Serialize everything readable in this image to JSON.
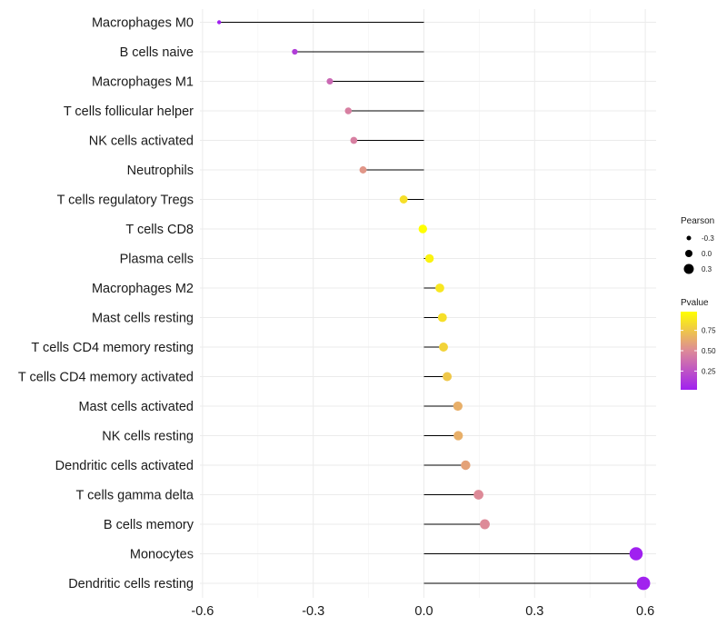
{
  "chart_data": {
    "type": "lollipop",
    "title": "",
    "xlabel": "",
    "ylabel": "",
    "xlim": [
      -0.62,
      0.62
    ],
    "x_ticks": [
      -0.6,
      -0.3,
      0.0,
      0.3,
      0.6
    ],
    "x_tick_labels": [
      "-0.6",
      "-0.3",
      "0.0",
      "0.3",
      "0.6"
    ],
    "grid": true,
    "baseline": 0.0,
    "categories": [
      "Macrophages M0",
      "B cells naive",
      "Macrophages M1",
      "T cells follicular helper",
      "NK cells activated",
      "Neutrophils",
      "T cells regulatory  Tregs ",
      "T cells CD8",
      "Plasma cells",
      "Macrophages M2",
      "Mast cells resting",
      "T cells CD4 memory resting",
      "T cells CD4 memory activated",
      "Mast cells activated",
      "NK cells resting",
      "Dendritic cells activated",
      "T cells gamma delta",
      "B cells memory",
      "Monocytes",
      "Dendritic cells resting"
    ],
    "pearson": [
      -0.555,
      -0.35,
      -0.255,
      -0.205,
      -0.19,
      -0.165,
      -0.055,
      -0.003,
      0.015,
      0.043,
      0.05,
      0.053,
      0.063,
      0.092,
      0.093,
      0.113,
      0.148,
      0.165,
      0.575,
      0.595
    ],
    "pvalue": [
      0.02,
      0.15,
      0.35,
      0.45,
      0.45,
      0.55,
      0.85,
      0.98,
      0.93,
      0.88,
      0.85,
      0.8,
      0.75,
      0.65,
      0.65,
      0.6,
      0.5,
      0.5,
      0.02,
      0.03
    ],
    "legend": {
      "size_title": "Pearson",
      "size_entries": [
        {
          "label": "-0.3",
          "value": -0.3
        },
        {
          "label": "0.0",
          "value": 0.0
        },
        {
          "label": "0.3",
          "value": 0.3
        }
      ],
      "color_title": "Pvalue",
      "color_ticks": [
        {
          "label": "0.75",
          "value": 0.75
        },
        {
          "label": "0.50",
          "value": 0.5
        },
        {
          "label": "0.25",
          "value": 0.25
        }
      ],
      "color_range": [
        0.02,
        0.98
      ],
      "color_low": "#a020f0",
      "color_mid": "#dd8a98",
      "color_high": "#ffff00",
      "placement": "right"
    }
  }
}
